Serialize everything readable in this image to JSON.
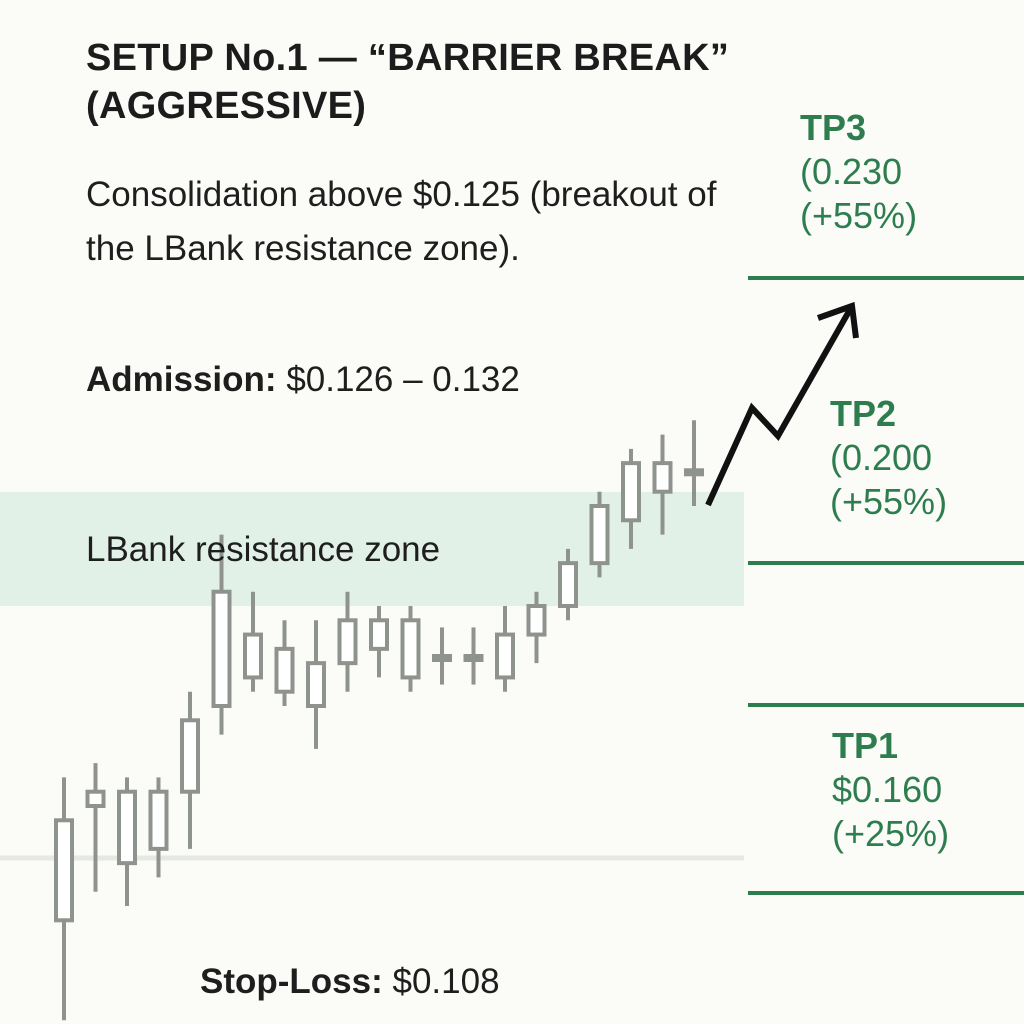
{
  "title_line1": "SETUP No.1 — “BARRIER BREAK”",
  "title_line2": "(AGGRESSIVE)",
  "description": "Consolidation above $0.125 (breakout of the LBank resistance zone).",
  "admission": {
    "label": "Admission:",
    "value": "$0.126 – 0.132"
  },
  "stop_loss": {
    "label": "Stop-Loss:",
    "value": "$0.108"
  },
  "zone_label": "LBank resistance zone",
  "targets": [
    {
      "name": "TP1",
      "price": "$0.160",
      "change": "(+25%)"
    },
    {
      "name": "TP2",
      "price": "(0.200",
      "change": "(+55%)"
    },
    {
      "name": "TP3",
      "price": "(0.230",
      "change": "(+55%)"
    }
  ],
  "colors": {
    "zone_fill": "#e2f1e8",
    "target_green": "#2e7d4f",
    "candle_gray": "#8f938d",
    "arrow": "#111111",
    "stop_line": "#e6e8e3"
  },
  "chart_data": {
    "type": "candlestick",
    "ylim": [
      0.1,
      0.25
    ],
    "resistance_zone": [
      0.125,
      0.132
    ],
    "stop_loss": 0.108,
    "targets": [
      0.16,
      0.2,
      0.23
    ],
    "candles": [
      {
        "o": 0.103,
        "h": 0.113,
        "l": 0.096,
        "c": 0.11
      },
      {
        "o": 0.111,
        "h": 0.114,
        "l": 0.105,
        "c": 0.112
      },
      {
        "o": 0.107,
        "h": 0.113,
        "l": 0.104,
        "c": 0.112
      },
      {
        "o": 0.108,
        "h": 0.113,
        "l": 0.106,
        "c": 0.112
      },
      {
        "o": 0.112,
        "h": 0.119,
        "l": 0.108,
        "c": 0.117
      },
      {
        "o": 0.118,
        "h": 0.13,
        "l": 0.116,
        "c": 0.126
      },
      {
        "o": 0.123,
        "h": 0.126,
        "l": 0.119,
        "c": 0.12
      },
      {
        "o": 0.122,
        "h": 0.124,
        "l": 0.118,
        "c": 0.119
      },
      {
        "o": 0.121,
        "h": 0.124,
        "l": 0.115,
        "c": 0.118
      },
      {
        "o": 0.121,
        "h": 0.126,
        "l": 0.119,
        "c": 0.124
      },
      {
        "o": 0.122,
        "h": 0.125,
        "l": 0.12,
        "c": 0.124
      },
      {
        "o": 0.124,
        "h": 0.125,
        "l": 0.119,
        "c": 0.12
      },
      {
        "o": 0.1215,
        "h": 0.1235,
        "l": 0.1195,
        "c": 0.1215
      },
      {
        "o": 0.1215,
        "h": 0.1235,
        "l": 0.1195,
        "c": 0.1215
      },
      {
        "o": 0.12,
        "h": 0.125,
        "l": 0.119,
        "c": 0.123
      },
      {
        "o": 0.123,
        "h": 0.126,
        "l": 0.121,
        "c": 0.125
      },
      {
        "o": 0.125,
        "h": 0.129,
        "l": 0.124,
        "c": 0.128
      },
      {
        "o": 0.128,
        "h": 0.133,
        "l": 0.127,
        "c": 0.132
      },
      {
        "o": 0.131,
        "h": 0.136,
        "l": 0.129,
        "c": 0.135
      },
      {
        "o": 0.133,
        "h": 0.137,
        "l": 0.13,
        "c": 0.135
      },
      {
        "o": 0.1345,
        "h": 0.138,
        "l": 0.132,
        "c": 0.1345
      }
    ]
  }
}
